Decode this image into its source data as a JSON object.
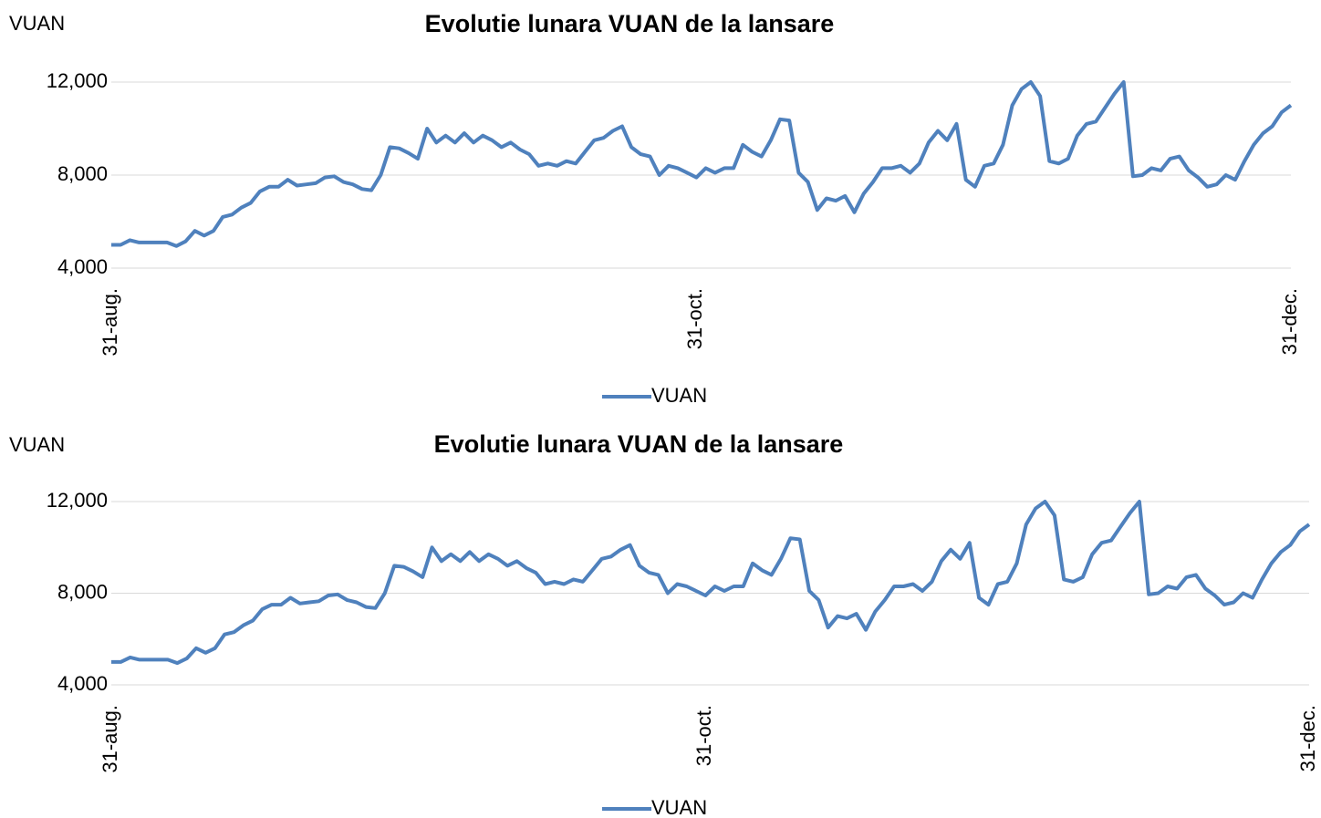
{
  "chart_data": [
    {
      "type": "line",
      "title": "Evolutie lunara VUAN de la lansare",
      "ylabel": "VUAN",
      "categories": [
        "31-aug.",
        null,
        null,
        null,
        null,
        null,
        null,
        null,
        null,
        null,
        null,
        null,
        null,
        null,
        null,
        null,
        null,
        null,
        null,
        null,
        null,
        null,
        null,
        null,
        null,
        null,
        null,
        null,
        null,
        null,
        null,
        null,
        null,
        null,
        null,
        null,
        null,
        null,
        null,
        null,
        null,
        null,
        null,
        null,
        null,
        null,
        null,
        null,
        null,
        null,
        null,
        null,
        null,
        null,
        null,
        null,
        null,
        null,
        null,
        null,
        null,
        null,
        null,
        "31-oct.",
        null,
        null,
        null,
        null,
        null,
        null,
        null,
        null,
        null,
        null,
        null,
        null,
        null,
        null,
        null,
        null,
        null,
        null,
        null,
        null,
        null,
        null,
        null,
        null,
        null,
        null,
        null,
        null,
        null,
        null,
        null,
        null,
        null,
        null,
        null,
        null,
        null,
        null,
        null,
        null,
        null,
        null,
        null,
        null,
        null,
        null,
        null,
        null,
        null,
        null,
        null,
        null,
        null,
        null,
        null,
        null,
        null,
        null,
        null,
        null,
        null,
        null,
        null,
        "31-dec."
      ],
      "series": [
        {
          "name": "VUAN",
          "color": "#4f81bd",
          "values": [
            5000,
            5000,
            5200,
            5100,
            5100,
            5100,
            5100,
            4950,
            5150,
            5600,
            5400,
            5600,
            6200,
            6300,
            6600,
            6800,
            7300,
            7500,
            7500,
            7800,
            7550,
            7600,
            7650,
            7900,
            7950,
            7700,
            7600,
            7400,
            7350,
            8000,
            9200,
            9150,
            8950,
            8700,
            10000,
            9400,
            9700,
            9400,
            9800,
            9400,
            9700,
            9500,
            9200,
            9400,
            9100,
            8900,
            8400,
            8500,
            8400,
            8600,
            8500,
            9000,
            9500,
            9600,
            9900,
            10100,
            9200,
            8900,
            8800,
            8000,
            8400,
            8300,
            8100,
            7900,
            8300,
            8100,
            8300,
            8300,
            9300,
            9000,
            8800,
            9500,
            10400,
            10350,
            8100,
            7700,
            6500,
            7000,
            6900,
            7100,
            6400,
            7200,
            7700,
            8300,
            8300,
            8400,
            8100,
            8500,
            9400,
            9900,
            9500,
            10200,
            7800,
            7500,
            8400,
            8500,
            9300,
            11000,
            11700,
            12000,
            11400,
            8600,
            8500,
            8700,
            9700,
            10200,
            10300,
            10900,
            11500,
            12000,
            7950,
            8000,
            8300,
            8200,
            8700,
            8800,
            8200,
            7900,
            7500,
            7600,
            8000,
            7800,
            8600,
            9300,
            9800,
            10100,
            10700,
            11000
          ]
        }
      ],
      "ylim": [
        4000,
        12000
      ],
      "yticks": [
        {
          "value": 4000,
          "label": "4,000"
        },
        {
          "value": 8000,
          "label": "8,000"
        },
        {
          "value": 12000,
          "label": "12,000"
        }
      ],
      "grid": true,
      "legend": "bottom"
    },
    {
      "type": "line",
      "title": "Evolutie lunara VUAN de la lansare",
      "ylabel": "VUAN",
      "categories": [
        "31-aug.",
        null,
        null,
        null,
        null,
        null,
        null,
        null,
        null,
        null,
        null,
        null,
        null,
        null,
        null,
        null,
        null,
        null,
        null,
        null,
        null,
        null,
        null,
        null,
        null,
        null,
        null,
        null,
        null,
        null,
        null,
        null,
        null,
        null,
        null,
        null,
        null,
        null,
        null,
        null,
        null,
        null,
        null,
        null,
        null,
        null,
        null,
        null,
        null,
        null,
        null,
        null,
        null,
        null,
        null,
        null,
        null,
        null,
        null,
        null,
        null,
        null,
        null,
        "31-oct.",
        null,
        null,
        null,
        null,
        null,
        null,
        null,
        null,
        null,
        null,
        null,
        null,
        null,
        null,
        null,
        null,
        null,
        null,
        null,
        null,
        null,
        null,
        null,
        null,
        null,
        null,
        null,
        null,
        null,
        null,
        null,
        null,
        null,
        null,
        null,
        null,
        null,
        null,
        null,
        null,
        null,
        null,
        null,
        null,
        null,
        null,
        null,
        null,
        null,
        null,
        null,
        null,
        null,
        null,
        null,
        null,
        null,
        null,
        null,
        null,
        null,
        null,
        null,
        "31-dec."
      ],
      "series": [
        {
          "name": "VUAN",
          "color": "#4f81bd",
          "values": [
            5000,
            5000,
            5200,
            5100,
            5100,
            5100,
            5100,
            4950,
            5150,
            5600,
            5400,
            5600,
            6200,
            6300,
            6600,
            6800,
            7300,
            7500,
            7500,
            7800,
            7550,
            7600,
            7650,
            7900,
            7950,
            7700,
            7600,
            7400,
            7350,
            8000,
            9200,
            9150,
            8950,
            8700,
            10000,
            9400,
            9700,
            9400,
            9800,
            9400,
            9700,
            9500,
            9200,
            9400,
            9100,
            8900,
            8400,
            8500,
            8400,
            8600,
            8500,
            9000,
            9500,
            9600,
            9900,
            10100,
            9200,
            8900,
            8800,
            8000,
            8400,
            8300,
            8100,
            7900,
            8300,
            8100,
            8300,
            8300,
            9300,
            9000,
            8800,
            9500,
            10400,
            10350,
            8100,
            7700,
            6500,
            7000,
            6900,
            7100,
            6400,
            7200,
            7700,
            8300,
            8300,
            8400,
            8100,
            8500,
            9400,
            9900,
            9500,
            10200,
            7800,
            7500,
            8400,
            8500,
            9300,
            11000,
            11700,
            12000,
            11400,
            8600,
            8500,
            8700,
            9700,
            10200,
            10300,
            10900,
            11500,
            12000,
            7950,
            8000,
            8300,
            8200,
            8700,
            8800,
            8200,
            7900,
            7500,
            7600,
            8000,
            7800,
            8600,
            9300,
            9800,
            10100,
            10700,
            11000
          ]
        }
      ],
      "ylim": [
        4000,
        12000
      ],
      "yticks": [
        {
          "value": 4000,
          "label": "4,000"
        },
        {
          "value": 8000,
          "label": "8,000"
        },
        {
          "value": 12000,
          "label": "12,000"
        }
      ],
      "grid": true,
      "legend": "bottom"
    }
  ]
}
